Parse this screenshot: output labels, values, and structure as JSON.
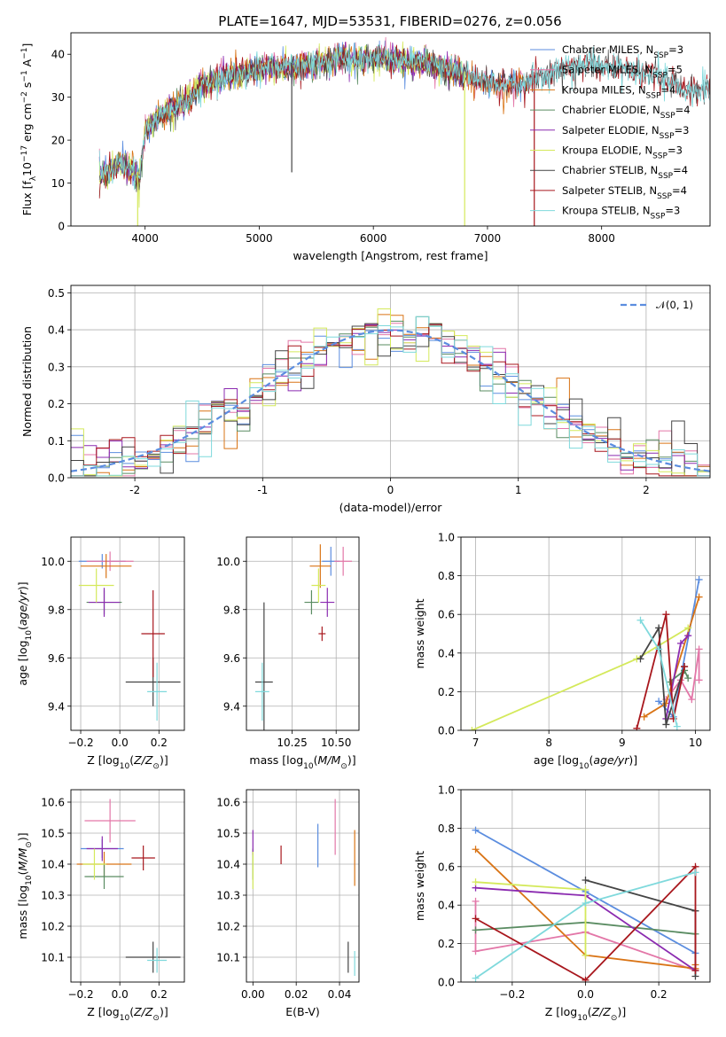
{
  "figure": {
    "title": "PLATE=1647, MJD=53531, FIBERID=0276, z=0.056"
  },
  "colors": {
    "chabrier_miles": "#5b8ddf",
    "salpeter_miles": "#e377a8",
    "kroupa_miles": "#d97416",
    "chabrier_elodie": "#5a8c62",
    "salpeter_elodie": "#8b2bb0",
    "kroupa_elodie": "#d4e95b",
    "chabrier_stelib": "#444444",
    "salpeter_stelib": "#a8171d",
    "kroupa_stelib": "#7fd9dc",
    "normal_curve": "#5b8ddf"
  },
  "chart_data": [
    {
      "id": "spectrum",
      "type": "line",
      "xlabel": "wavelength [Angstrom, rest frame]",
      "ylabel": "Flux [f_λ10^-17 erg cm^-2 s^-1 A^-1]",
      "xlim": [
        3350,
        8950
      ],
      "ylim": [
        0,
        45
      ],
      "xticks": [
        4000,
        5000,
        6000,
        7000,
        8000
      ],
      "yticks": [
        0,
        10,
        20,
        30,
        40
      ],
      "grid": false,
      "legend_position": "top-right",
      "legend": [
        {
          "label": "Chabrier MILES, N_SSP=3",
          "color": "#5b8ddf"
        },
        {
          "label": "Salpeter MILES, N_SSP=5",
          "color": "#e377a8"
        },
        {
          "label": "Kroupa MILES, N_SSP=4",
          "color": "#d97416"
        },
        {
          "label": "Chabrier ELODIE, N_SSP=4",
          "color": "#5a8c62"
        },
        {
          "label": "Salpeter ELODIE, N_SSP=3",
          "color": "#8b2bb0"
        },
        {
          "label": "Kroupa ELODIE, N_SSP=3",
          "color": "#d4e95b"
        },
        {
          "label": "Chabrier STELIB, N_SSP=4",
          "color": "#444444"
        },
        {
          "label": "Salpeter STELIB, N_SSP=4",
          "color": "#a8171d"
        },
        {
          "label": "Kroupa STELIB, N_SSP=3",
          "color": "#7fd9dc"
        }
      ],
      "continuum": {
        "x": [
          3600,
          3700,
          3800,
          3900,
          3950,
          4000,
          4100,
          4200,
          4300,
          4400,
          4500,
          4700,
          4900,
          5100,
          5300,
          5500,
          5700,
          5900,
          6100,
          6300,
          6500,
          6700,
          6900,
          7100,
          7300,
          7500,
          7700,
          7900,
          8100,
          8300,
          8500,
          8700
        ],
        "y": [
          12,
          13,
          15,
          13,
          11,
          22,
          25,
          27,
          28,
          30,
          33,
          35,
          36,
          37,
          37,
          38,
          39,
          39,
          39,
          38.5,
          38,
          36,
          34,
          33,
          33,
          35,
          37,
          38,
          37,
          36,
          35,
          32
        ]
      },
      "spikes": [
        {
          "x": 3935,
          "series": "Kroupa ELODIE",
          "y_low": 0
        },
        {
          "x": 6800,
          "series": "Kroupa ELODIE",
          "y_low": 0
        },
        {
          "x": 7410,
          "series": "Salpeter STELIB",
          "y_low": 0
        },
        {
          "x": 5285,
          "series": "Chabrier STELIB",
          "y_low": 12.5
        }
      ]
    },
    {
      "id": "residual-histogram",
      "type": "histogram",
      "xlabel": "(data-model)/error",
      "ylabel": "Normed distribution",
      "xlim": [
        -2.5,
        2.5
      ],
      "ylim": [
        0,
        0.52
      ],
      "xticks": [
        -2,
        -1,
        0,
        1,
        2
      ],
      "yticks": [
        0.0,
        0.1,
        0.2,
        0.3,
        0.4,
        0.5
      ],
      "grid": true,
      "bin_edges_start": -2.5,
      "bin_width": 0.1,
      "reference_curve": {
        "label": "𝒩(0, 1)",
        "mean": 0,
        "sigma": 1,
        "style": "dashed"
      },
      "legend_position": "top-right"
    },
    {
      "id": "age-vs-z",
      "type": "scatter",
      "xlabel": "Z [log10(Z/Z⊙)]",
      "ylabel": "age [log10(age/yr)]",
      "xlim": [
        -0.25,
        0.33
      ],
      "ylim": [
        9.3,
        10.1
      ],
      "xticks": [
        -0.2,
        0.0,
        0.2
      ],
      "xtick_labels": [
        "−0.2",
        "0.0",
        "0.2"
      ],
      "yticks": [
        9.4,
        9.6,
        9.8,
        10.0
      ],
      "grid": true,
      "points": [
        {
          "series": "Chabrier MILES",
          "x": -0.09,
          "y": 10.0,
          "xerr": 0.12,
          "yerr": 0.03
        },
        {
          "series": "Salpeter MILES",
          "x": -0.05,
          "y": 10.0,
          "xerr": 0.12,
          "yerr": 0.04
        },
        {
          "series": "Kroupa MILES",
          "x": -0.07,
          "y": 9.98,
          "xerr": 0.13,
          "yerr": 0.05
        },
        {
          "series": "Chabrier ELODIE",
          "x": -0.08,
          "y": 9.83,
          "xerr": 0.09,
          "yerr": 0.05
        },
        {
          "series": "Salpeter ELODIE",
          "x": -0.08,
          "y": 9.83,
          "xerr": 0.08,
          "yerr": 0.06
        },
        {
          "series": "Kroupa ELODIE",
          "x": -0.12,
          "y": 9.9,
          "xerr": 0.09,
          "yerr": 0.07
        },
        {
          "series": "Chabrier STELIB",
          "x": 0.17,
          "y": 9.5,
          "xerr": 0.14,
          "yerr": 0.1
        },
        {
          "series": "Salpeter STELIB",
          "x": 0.17,
          "y": 9.7,
          "xerr": 0.06,
          "yerr": 0.18
        },
        {
          "series": "Kroupa STELIB",
          "x": 0.19,
          "y": 9.46,
          "xerr": 0.05,
          "yerr": 0.12
        }
      ]
    },
    {
      "id": "age-vs-mass",
      "type": "scatter",
      "xlabel": "mass [log10(M/M⊙)]",
      "ylabel": "",
      "xlim": [
        9.99,
        10.63
      ],
      "ylim": [
        9.3,
        10.1
      ],
      "xticks": [
        10.25,
        10.5
      ],
      "xtick_labels": [
        "10.25",
        "10.50"
      ],
      "yticks": [
        9.4,
        9.6,
        9.8,
        10.0
      ],
      "grid": true,
      "points": [
        {
          "series": "Chabrier MILES",
          "x": 10.47,
          "y": 10.0,
          "xerr": 0.05,
          "yerr": 0.06
        },
        {
          "series": "Salpeter MILES",
          "x": 10.54,
          "y": 10.0,
          "xerr": 0.05,
          "yerr": 0.06
        },
        {
          "series": "Kroupa MILES",
          "x": 10.41,
          "y": 9.98,
          "xerr": 0.06,
          "yerr": 0.09
        },
        {
          "series": "Chabrier ELODIE",
          "x": 10.36,
          "y": 9.83,
          "xerr": 0.04,
          "yerr": 0.05
        },
        {
          "series": "Salpeter ELODIE",
          "x": 10.45,
          "y": 9.83,
          "xerr": 0.04,
          "yerr": 0.06
        },
        {
          "series": "Kroupa ELODIE",
          "x": 10.4,
          "y": 9.9,
          "xerr": 0.04,
          "yerr": 0.07
        },
        {
          "series": "Chabrier STELIB",
          "x": 10.09,
          "y": 9.5,
          "xerr": 0.05,
          "yerr": 0.33
        },
        {
          "series": "Salpeter STELIB",
          "x": 10.42,
          "y": 9.7,
          "xerr": 0.02,
          "yerr": 0.03
        },
        {
          "series": "Kroupa STELIB",
          "x": 10.08,
          "y": 9.46,
          "xerr": 0.04,
          "yerr": 0.12
        }
      ]
    },
    {
      "id": "weight-vs-age",
      "type": "line",
      "xlabel": "age [log10(age/yr)]",
      "ylabel": "mass weight",
      "xlim": [
        6.8,
        10.2
      ],
      "ylim": [
        0,
        1.0
      ],
      "xticks": [
        7,
        8,
        9,
        10
      ],
      "yticks": [
        0.0,
        0.2,
        0.4,
        0.6,
        0.8,
        1.0
      ],
      "grid": true,
      "series": [
        {
          "name": "Chabrier MILES",
          "x": [
            9.5,
            9.7,
            10.05
          ],
          "y": [
            0.15,
            0.07,
            0.78
          ]
        },
        {
          "name": "Salpeter MILES",
          "x": [
            9.6,
            9.8,
            9.95,
            10.05,
            10.05
          ],
          "y": [
            0.16,
            0.26,
            0.16,
            0.42,
            0.26
          ]
        },
        {
          "name": "Kroupa MILES",
          "x": [
            9.3,
            9.6,
            10.05
          ],
          "y": [
            0.07,
            0.14,
            0.69
          ]
        },
        {
          "name": "Chabrier ELODIE",
          "x": [
            9.65,
            9.85,
            9.9
          ],
          "y": [
            0.25,
            0.31,
            0.27
          ]
        },
        {
          "name": "Salpeter ELODIE",
          "x": [
            9.6,
            9.8,
            9.9
          ],
          "y": [
            0.06,
            0.45,
            0.49
          ]
        },
        {
          "name": "Kroupa ELODIE",
          "x": [
            6.95,
            9.2,
            9.9
          ],
          "y": [
            0.0,
            0.37,
            0.53
          ]
        },
        {
          "name": "Chabrier STELIB",
          "x": [
            9.25,
            9.5,
            9.6,
            9.85
          ],
          "y": [
            0.37,
            0.53,
            0.03,
            0.33
          ]
        },
        {
          "name": "Salpeter STELIB",
          "x": [
            9.2,
            9.6,
            9.7,
            9.85
          ],
          "y": [
            0.01,
            0.6,
            0.06,
            0.33
          ]
        },
        {
          "name": "Kroupa STELIB",
          "x": [
            9.25,
            9.5,
            9.75
          ],
          "y": [
            0.57,
            0.42,
            0.02
          ]
        }
      ]
    },
    {
      "id": "mass-vs-z",
      "type": "scatter",
      "xlabel": "Z [log10(Z/Z⊙)]",
      "ylabel": "mass [log10(M/M⊙)]",
      "xlim": [
        -0.25,
        0.33
      ],
      "ylim": [
        10.02,
        10.64
      ],
      "xticks": [
        -0.2,
        0.0,
        0.2
      ],
      "xtick_labels": [
        "−0.2",
        "0.0",
        "0.2"
      ],
      "yticks": [
        10.1,
        10.2,
        10.3,
        10.4,
        10.5,
        10.6
      ],
      "grid": true,
      "points": [
        {
          "series": "Chabrier MILES",
          "x": -0.09,
          "y": 10.45,
          "xerr": 0.11,
          "yerr": 0.03
        },
        {
          "series": "Salpeter MILES",
          "x": -0.05,
          "y": 10.54,
          "xerr": 0.13,
          "yerr": 0.07
        },
        {
          "series": "Kroupa MILES",
          "x": -0.08,
          "y": 10.4,
          "xerr": 0.14,
          "yerr": 0.04
        },
        {
          "series": "Chabrier ELODIE",
          "x": -0.08,
          "y": 10.36,
          "xerr": 0.1,
          "yerr": 0.04
        },
        {
          "series": "Salpeter ELODIE",
          "x": -0.09,
          "y": 10.45,
          "xerr": 0.08,
          "yerr": 0.04
        },
        {
          "series": "Kroupa ELODIE",
          "x": -0.13,
          "y": 10.4,
          "xerr": 0.06,
          "yerr": 0.05
        },
        {
          "series": "Chabrier STELIB",
          "x": 0.17,
          "y": 10.1,
          "xerr": 0.14,
          "yerr": 0.05
        },
        {
          "series": "Salpeter STELIB",
          "x": 0.12,
          "y": 10.42,
          "xerr": 0.06,
          "yerr": 0.04
        },
        {
          "series": "Kroupa STELIB",
          "x": 0.19,
          "y": 10.09,
          "xerr": 0.05,
          "yerr": 0.04
        }
      ]
    },
    {
      "id": "mass-vs-ebv",
      "type": "scatter",
      "xlabel": "E(B-V)",
      "ylabel": "",
      "xlim": [
        -0.003,
        0.049
      ],
      "ylim": [
        10.02,
        10.64
      ],
      "xticks": [
        0.0,
        0.02,
        0.04
      ],
      "xtick_labels": [
        "0.00",
        "0.02",
        "0.04"
      ],
      "yticks": [
        10.1,
        10.2,
        10.3,
        10.4,
        10.5,
        10.6
      ],
      "grid": true,
      "points": [
        {
          "series": "Chabrier MILES",
          "x": 0.03,
          "y": 10.46,
          "yerr": 0.07
        },
        {
          "series": "Salpeter MILES",
          "x": 0.038,
          "y": 10.52,
          "yerr": 0.09
        },
        {
          "series": "Kroupa MILES",
          "x": 0.047,
          "y": 10.42,
          "yerr": 0.09
        },
        {
          "series": "Chabrier ELODIE",
          "x": 0.0,
          "y": 10.4,
          "yerr": 0.05
        },
        {
          "series": "Salpeter ELODIE",
          "x": 0.0,
          "y": 10.47,
          "yerr": 0.04
        },
        {
          "series": "Kroupa ELODIE",
          "x": 0.0,
          "y": 10.38,
          "yerr": 0.06
        },
        {
          "series": "Chabrier STELIB",
          "x": 0.044,
          "y": 10.1,
          "yerr": 0.05
        },
        {
          "series": "Salpeter STELIB",
          "x": 0.013,
          "y": 10.43,
          "yerr": 0.03
        },
        {
          "series": "Kroupa STELIB",
          "x": 0.047,
          "y": 10.08,
          "yerr": 0.04
        }
      ]
    },
    {
      "id": "weight-vs-z",
      "type": "line",
      "xlabel": "Z [log10(Z/Z⊙)]",
      "ylabel": "mass weight",
      "xlim": [
        -0.34,
        0.34
      ],
      "ylim": [
        0,
        1.0
      ],
      "xticks": [
        -0.2,
        0.0,
        0.2
      ],
      "xtick_labels": [
        "−0.2",
        "0.0",
        "0.2"
      ],
      "yticks": [
        0.0,
        0.2,
        0.4,
        0.6,
        0.8,
        1.0
      ],
      "grid": true,
      "series": [
        {
          "name": "Chabrier MILES",
          "x": [
            -0.3,
            0.0,
            0.3
          ],
          "y": [
            0.79,
            0.47,
            0.15
          ]
        },
        {
          "name": "Salpeter MILES",
          "x": [
            -0.3,
            -0.3,
            0.0,
            0.3
          ],
          "y": [
            0.42,
            0.16,
            0.26,
            0.06
          ]
        },
        {
          "name": "Kroupa MILES",
          "x": [
            -0.3,
            0.0,
            0.3,
            0.3
          ],
          "y": [
            0.69,
            0.14,
            0.07,
            0.09
          ]
        },
        {
          "name": "Chabrier ELODIE",
          "x": [
            -0.3,
            0.0,
            0.3
          ],
          "y": [
            0.27,
            0.31,
            0.25
          ]
        },
        {
          "name": "Salpeter ELODIE",
          "x": [
            -0.3,
            0.0,
            0.3
          ],
          "y": [
            0.49,
            0.45,
            0.06
          ]
        },
        {
          "name": "Kroupa ELODIE",
          "x": [
            -0.3,
            0.0,
            0.0
          ],
          "y": [
            0.52,
            0.48,
            0.14
          ]
        },
        {
          "name": "Chabrier STELIB",
          "x": [
            0.0,
            0.3,
            0.3
          ],
          "y": [
            0.53,
            0.37,
            0.03
          ]
        },
        {
          "name": "Salpeter STELIB",
          "x": [
            -0.3,
            0.0,
            0.3,
            0.3
          ],
          "y": [
            0.33,
            0.01,
            0.6,
            0.06
          ]
        },
        {
          "name": "Kroupa STELIB",
          "x": [
            -0.3,
            0.0,
            0.3
          ],
          "y": [
            0.02,
            0.41,
            0.57
          ]
        }
      ]
    }
  ]
}
